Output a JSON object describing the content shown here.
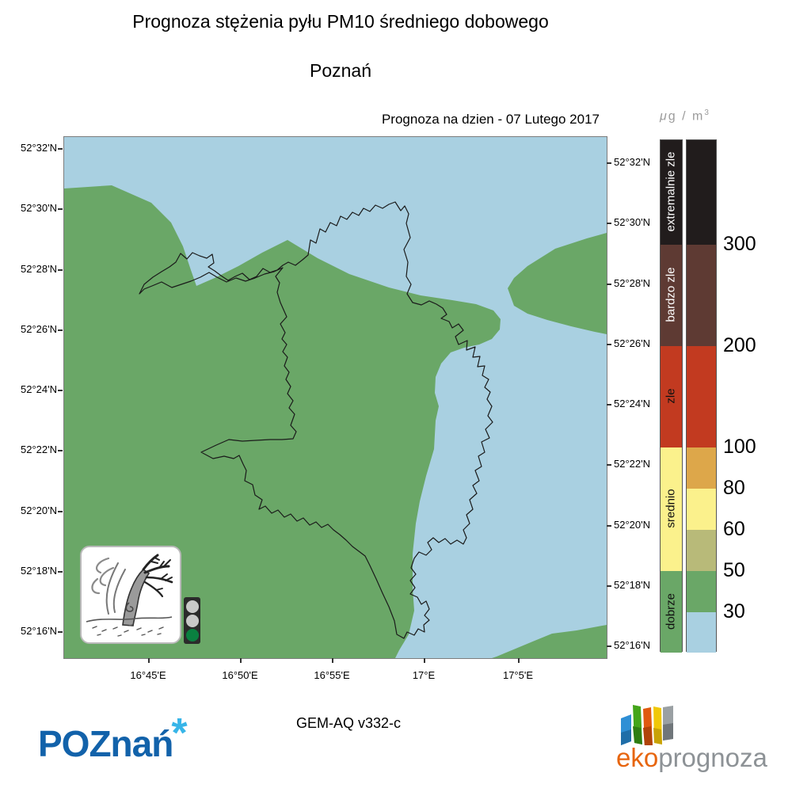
{
  "title": "Prognoza stężenia pyłu PM10 średniego dobowego",
  "subtitle": "Poznań",
  "forecast_line": "Prognoza na dzien -  07 Lutego 2017",
  "map": {
    "lat_labels": [
      "52°32'N",
      "52°30'N",
      "52°28'N",
      "52°26'N",
      "52°24'N",
      "52°22'N",
      "52°20'N",
      "52°18'N",
      "52°16'N"
    ],
    "lon_labels": [
      "16°45'E",
      "16°50'E",
      "16°55'E",
      "17°E",
      "17°5'E"
    ],
    "colors": {
      "land_low": "#a9d0e1",
      "land_mid": "#6aa767",
      "boundary_line": "#1a1a1a"
    }
  },
  "legend": {
    "unit_mu": "μ",
    "unit_rest": "g / m",
    "unit_sup": "3",
    "categories": [
      {
        "label": "extremalnie zle",
        "color": "#211c1c",
        "text_color": "#ffffff"
      },
      {
        "label": "bardzo zle",
        "color": "#5e3a33",
        "text_color": "#ffffff"
      },
      {
        "label": "zle",
        "color": "#c23a20",
        "text_color": "#111111"
      },
      {
        "label": "srednio",
        "color": "#fbf18c",
        "text_color": "#111111"
      },
      {
        "label": "dobrze",
        "color": "#6aa767",
        "text_color": "#111111"
      }
    ],
    "scale_colors": [
      "#211c1c",
      "#5e3a33",
      "#c23a20",
      "#dda74a",
      "#fbf18c",
      "#b8ba79",
      "#6aa767",
      "#a9d0e1"
    ],
    "scale_values": [
      "300",
      "200",
      "100",
      "80",
      "60",
      "50",
      "30"
    ]
  },
  "traffic_light": {
    "top": "#c9c9c9",
    "middle": "#c9c9c9",
    "bottom": "#0a8040",
    "active": "green"
  },
  "footer": {
    "model": "GEM-AQ v332-c",
    "city_logo_text": "POZnań",
    "city_logo_mark": "*",
    "city_logo_color": "#1262aa",
    "city_mark_color": "#37b5e8",
    "eco_logo_eko": "eko",
    "eco_logo_rest": "prognoza",
    "eco_eko_color": "#e7650e",
    "eco_rest_color": "#8d9296"
  }
}
